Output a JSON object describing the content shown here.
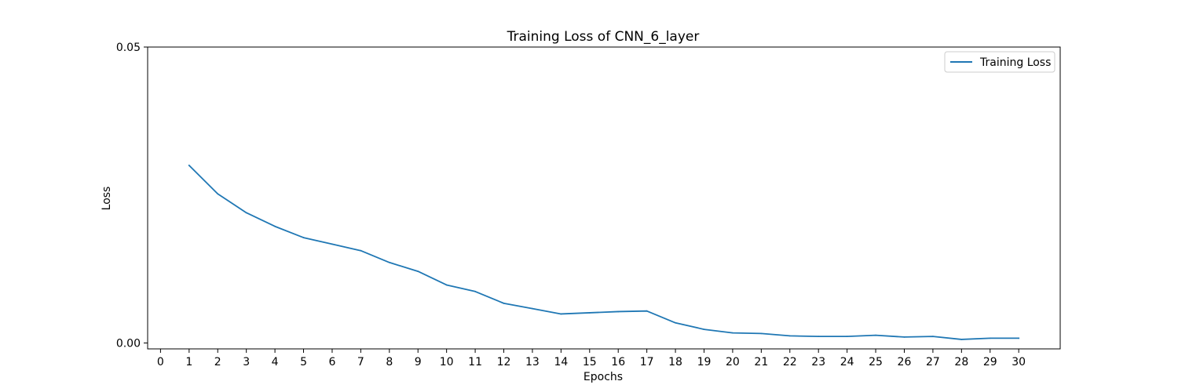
{
  "chart_data": {
    "type": "line",
    "title": "Training Loss of CNN_6_layer",
    "xlabel": "Epochs",
    "ylabel": "Loss",
    "x_ticks": [
      0,
      1,
      2,
      3,
      4,
      5,
      6,
      7,
      8,
      9,
      10,
      11,
      12,
      13,
      14,
      15,
      16,
      17,
      18,
      19,
      20,
      21,
      22,
      23,
      24,
      25,
      26,
      27,
      28,
      29,
      30
    ],
    "y_ticks": [
      "0.00",
      "0.05"
    ],
    "xlim": [
      -0.45,
      31.45
    ],
    "ylim": [
      -0.001,
      0.05
    ],
    "grid": false,
    "legend_position": "top-right",
    "series": [
      {
        "name": "Training Loss",
        "color": "#1f77b4",
        "x": [
          1,
          2,
          3,
          4,
          5,
          6,
          7,
          8,
          9,
          10,
          11,
          12,
          13,
          14,
          15,
          16,
          17,
          18,
          19,
          20,
          21,
          22,
          23,
          24,
          25,
          26,
          27,
          28,
          29,
          30
        ],
        "values": [
          0.03,
          0.0252,
          0.022,
          0.0197,
          0.0178,
          0.0167,
          0.0156,
          0.0136,
          0.0121,
          0.0098,
          0.0087,
          0.0067,
          0.0058,
          0.0049,
          0.0051,
          0.0053,
          0.0054,
          0.0034,
          0.0023,
          0.0017,
          0.0016,
          0.0012,
          0.0011,
          0.0011,
          0.0013,
          0.001,
          0.0011,
          0.0006,
          0.0008,
          0.0008
        ]
      }
    ]
  }
}
